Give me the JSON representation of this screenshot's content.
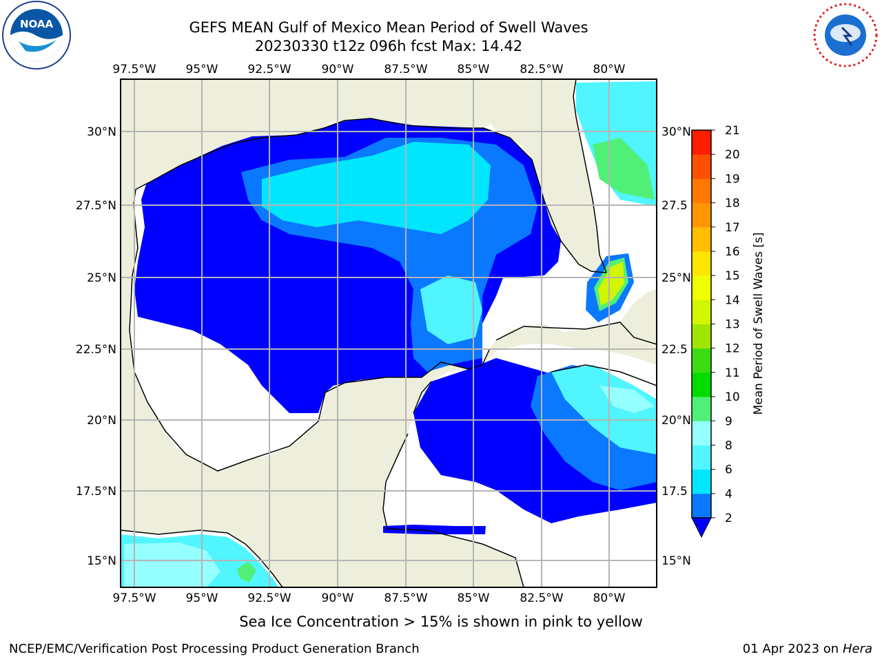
{
  "title_line1": "GEFS MEAN Gulf of Mexico Mean Period of Swell Waves",
  "title_line2": "20230330 t12z 096h fcst   Max: 14.42",
  "lon_labels": [
    "97.5°W",
    "95°W",
    "92.5°W",
    "90°W",
    "87.5°W",
    "85°W",
    "82.5°W",
    "80°W"
  ],
  "lat_labels_left": [
    "30°N",
    "27.5°N",
    "25°N",
    "22.5°N",
    "20°N",
    "17.5°N",
    "15°N"
  ],
  "lat_labels_right": [
    "30°N",
    "27.5",
    "25°N",
    "22.5",
    "20°N",
    "17.5",
    "15°N"
  ],
  "colorbar": {
    "label": "Mean Period of Swell Waves [s]",
    "ticks": [
      "2",
      "4",
      "6",
      "8",
      "9",
      "10",
      "11",
      "12",
      "13",
      "14",
      "15",
      "16",
      "17",
      "18",
      "19",
      "20",
      "21"
    ],
    "colors": [
      "#0a78ff",
      "#00e6ff",
      "#50f5ff",
      "#96ffff",
      "#50f078",
      "#00dc00",
      "#3cdc14",
      "#a0e600",
      "#d2f500",
      "#f0ff00",
      "#ffe600",
      "#ffbe00",
      "#ff9600",
      "#ff7800",
      "#ff5000",
      "#ff1e00"
    ],
    "under_color": "#0000ff"
  },
  "note": "Sea Ice Concentration > 15% is shown in pink to yellow",
  "footer_left": "NCEP/EMC/Verification Post Processing Product Generation Branch",
  "footer_date": "01 Apr 2023 on ",
  "footer_host": "Hera",
  "logos": {
    "left": "NOAA",
    "right": "NATIONAL WEATHER SERVICE"
  },
  "colors": {
    "land": "#eeeedc",
    "ocean_background": "#ffffff",
    "grid": "#b4b4b4"
  }
}
